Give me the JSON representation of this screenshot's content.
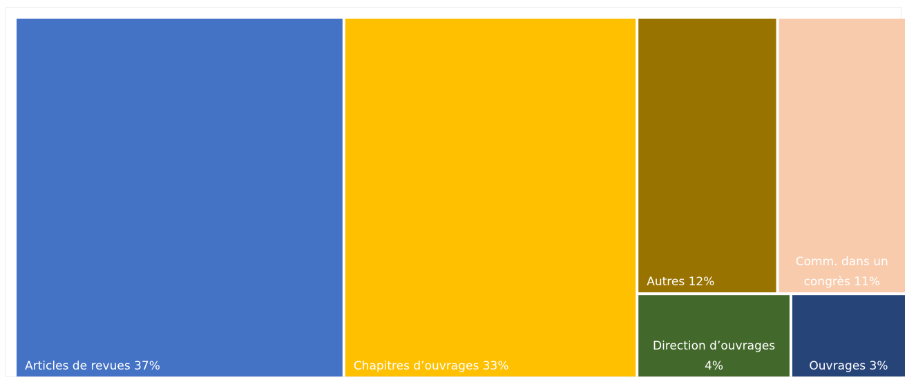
{
  "chart_data": {
    "type": "treemap",
    "title": "",
    "items": [
      {
        "name": "Articles de revues",
        "value": 37,
        "label": [
          "Articles de revues 37%"
        ],
        "color": "#4472C4",
        "label_color": "#ffffff",
        "label_align": "left-bottom"
      },
      {
        "name": "Chapitres d’ouvrages",
        "value": 33,
        "label": [
          "Chapitres d’ouvrages 33%"
        ],
        "color": "#FFC000",
        "label_color": "#ffffff",
        "label_align": "left-bottom"
      },
      {
        "name": "Autres",
        "value": 12,
        "label": [
          "Autres 12%"
        ],
        "color": "#997300",
        "label_color": "#ffffff",
        "label_align": "left-bottom"
      },
      {
        "name": "Comm. dans un congrès",
        "value": 11,
        "label": [
          "Comm. dans un",
          "congrès 11%"
        ],
        "color": "#F8CBAD",
        "label_color": "#ffffff",
        "label_align": "center-bottom"
      },
      {
        "name": "Direction d’ouvrages",
        "value": 4,
        "label": [
          "Direction d’ouvrages",
          "4%"
        ],
        "color": "#43682B",
        "label_color": "#ffffff",
        "label_align": "center-bottom"
      },
      {
        "name": "Ouvrages",
        "value": 3,
        "label": [
          "Ouvrages 3%"
        ],
        "color": "#264478",
        "label_color": "#ffffff",
        "label_align": "center-bottom"
      }
    ]
  }
}
